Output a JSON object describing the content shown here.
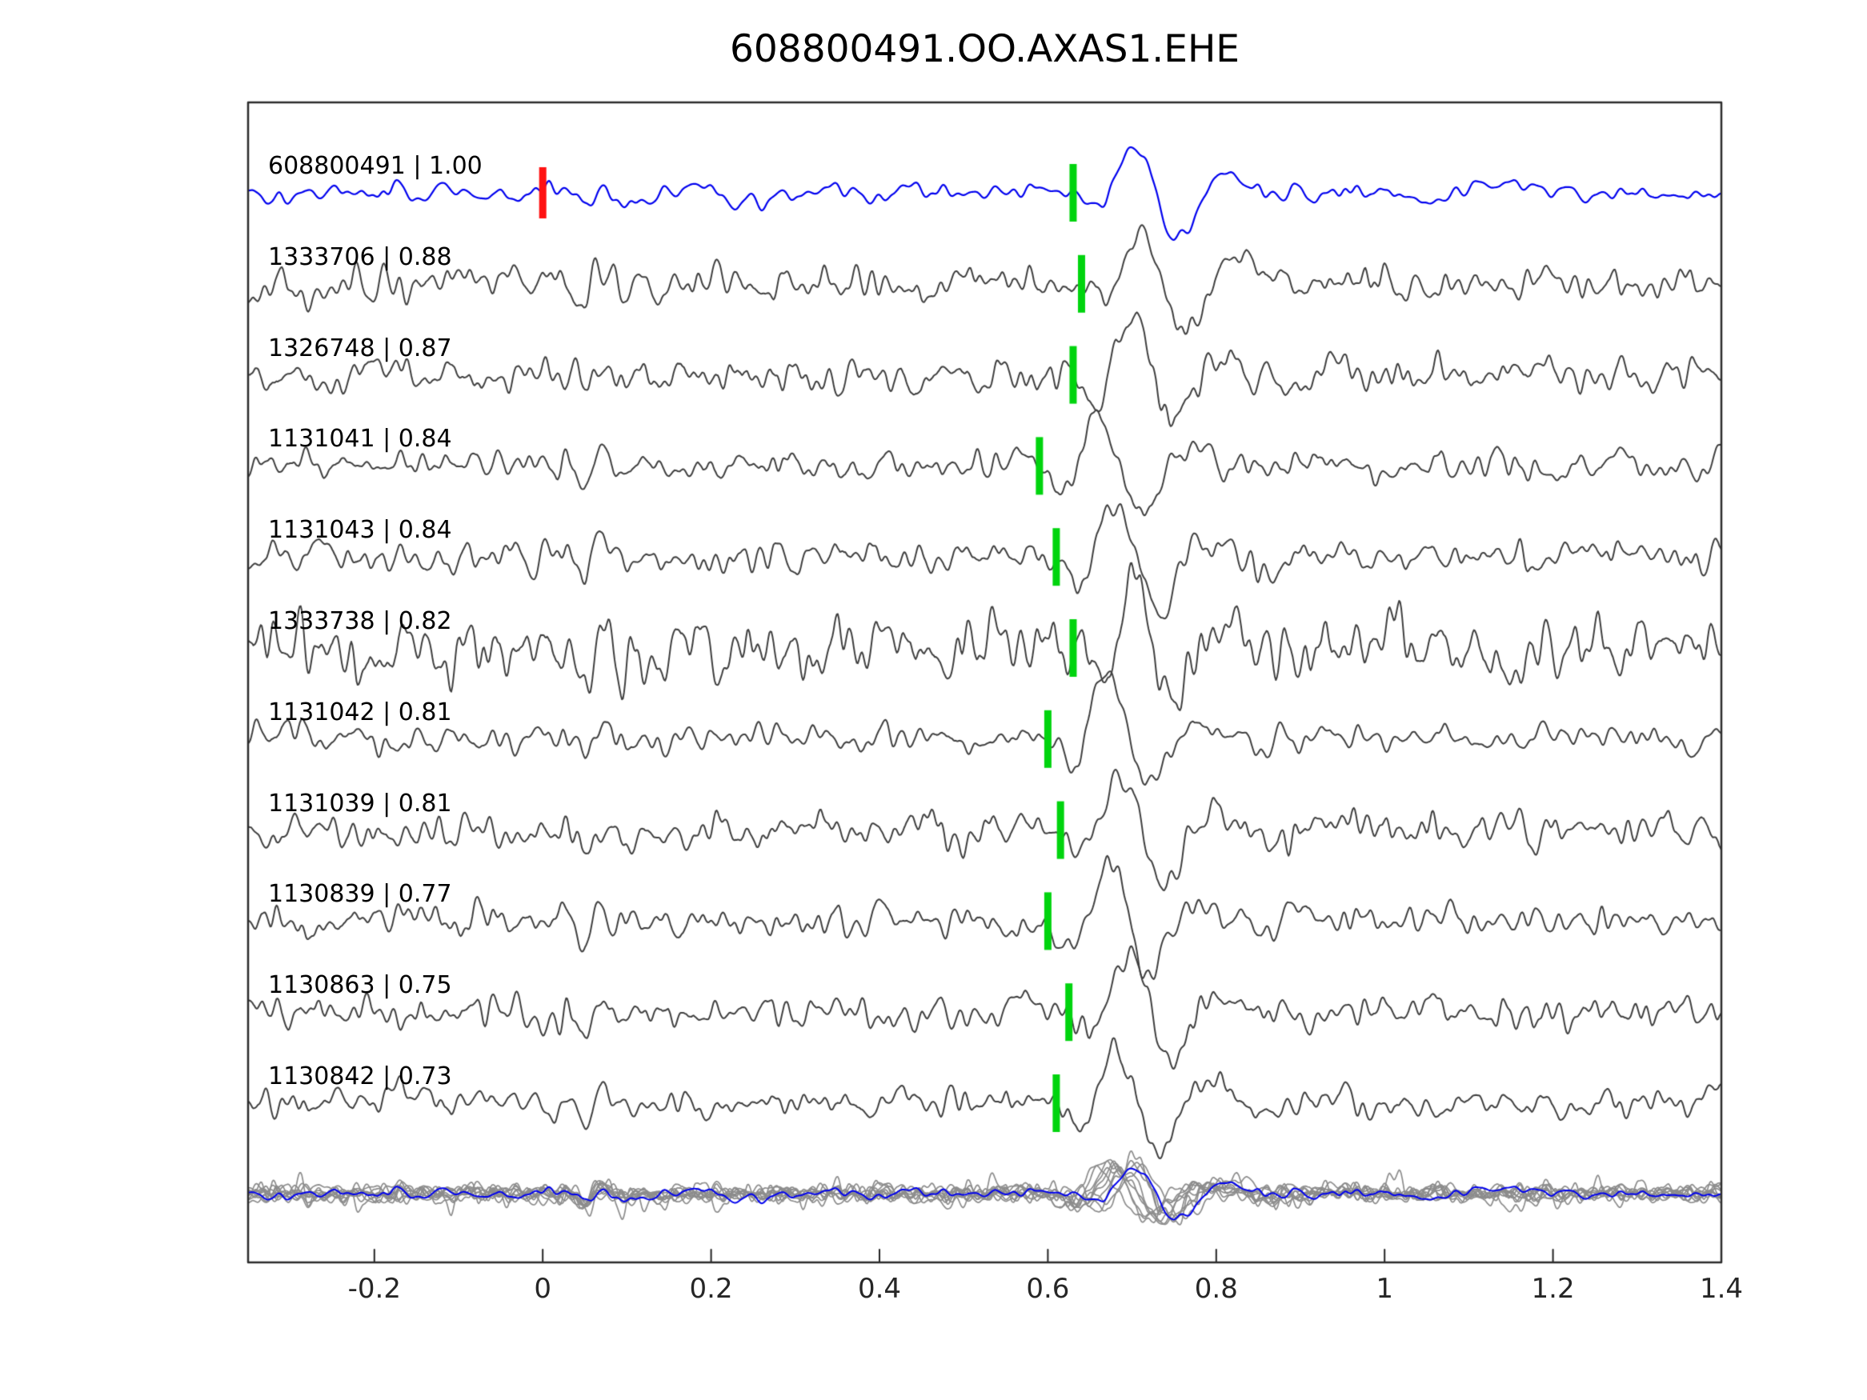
{
  "title": "608800491.OO.AXAS1.EHE",
  "chart_data": {
    "type": "line",
    "title": "608800491.OO.AXAS1.EHE",
    "description": "Template-matching seismogram comparison: template event 608800491 (blue, top) versus 10 detected matching events (gray), each labeled 'event_id | cross-correlation'. Green bars mark aligned phase picks near t=0.6; red bar marks template origin pick at t=0. Bottom row overlays all traces with the template.",
    "xlim": [
      -0.35,
      1.4
    ],
    "x_tick_values": [
      -0.2,
      0,
      0.2,
      0.4,
      0.6,
      0.8,
      1,
      1.2,
      1.4
    ],
    "x_tick_labels": [
      "-0.2",
      "0",
      "0.2",
      "0.4",
      "0.6",
      "0.8",
      "1",
      "1.2",
      "1.4"
    ],
    "grid": false,
    "legend": "none",
    "template_color": "#0000ee",
    "trace_color": "#3f3f3f",
    "overlay_color": "#8c8c8c",
    "pick_marker_color": "#00d40e",
    "onset_marker_color": "#ff1212",
    "traces": [
      {
        "label": "608800491 | 1.00",
        "event_id": "608800491",
        "similarity": 1.0,
        "pick_time": 0.63,
        "onset_time": 0.0,
        "is_template": true,
        "noise_amp": 6
      },
      {
        "label": "1333706 | 0.88",
        "event_id": "1333706",
        "similarity": 0.88,
        "pick_time": 0.64,
        "is_template": false,
        "noise_amp": 11
      },
      {
        "label": "1326748 | 0.87",
        "event_id": "1326748",
        "similarity": 0.87,
        "pick_time": 0.63,
        "is_template": false,
        "noise_amp": 11
      },
      {
        "label": "1131041 | 0.84",
        "event_id": "1131041",
        "similarity": 0.84,
        "pick_time": 0.59,
        "is_template": false,
        "noise_amp": 9
      },
      {
        "label": "1131043 | 0.84",
        "event_id": "1131043",
        "similarity": 0.84,
        "pick_time": 0.61,
        "is_template": false,
        "noise_amp": 10
      },
      {
        "label": "1333738 | 0.82",
        "event_id": "1333738",
        "similarity": 0.82,
        "pick_time": 0.63,
        "is_template": false,
        "noise_amp": 20
      },
      {
        "label": "1131042 | 0.81",
        "event_id": "1131042",
        "similarity": 0.81,
        "pick_time": 0.6,
        "is_template": false,
        "noise_amp": 9
      },
      {
        "label": "1131039 | 0.81",
        "event_id": "1131039",
        "similarity": 0.81,
        "pick_time": 0.615,
        "is_template": false,
        "noise_amp": 11
      },
      {
        "label": "1130839 | 0.77",
        "event_id": "1130839",
        "similarity": 0.77,
        "pick_time": 0.6,
        "is_template": false,
        "noise_amp": 10
      },
      {
        "label": "1130863 | 0.75",
        "event_id": "1130863",
        "similarity": 0.75,
        "pick_time": 0.625,
        "is_template": false,
        "noise_amp": 10
      },
      {
        "label": "1130842 | 0.73",
        "event_id": "1130842",
        "similarity": 0.73,
        "pick_time": 0.61,
        "is_template": false,
        "noise_amp": 9
      }
    ],
    "overlay_row": {
      "description": "All gray traces overlaid together with the blue template waveform at reduced amplitude"
    }
  }
}
